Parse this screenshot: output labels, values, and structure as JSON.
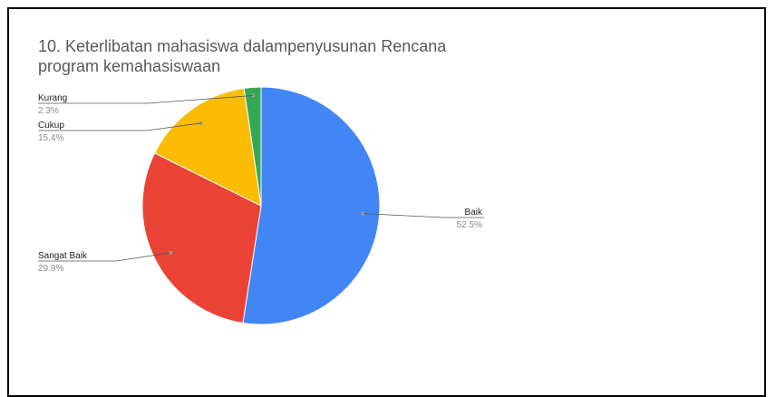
{
  "chart_data": {
    "type": "pie",
    "title": "10. Keterlibatan mahasiswa dalampenyusunan Rencana program kemahasiswaan",
    "slices": [
      {
        "label": "Baik",
        "value": 52.5,
        "percent": "52.5%",
        "color": "#4285f4",
        "legend_side": "right"
      },
      {
        "label": "Sangat Baik",
        "value": 29.9,
        "percent": "29.9%",
        "color": "#ea4335",
        "legend_side": "left"
      },
      {
        "label": "Cukup",
        "value": 15.4,
        "percent": "15.4%",
        "color": "#fbbc04",
        "legend_side": "left"
      },
      {
        "label": "Kurang",
        "value": 2.3,
        "percent": "2.3%",
        "color": "#34a853",
        "legend_side": "left"
      }
    ],
    "start_angle_deg": 0,
    "direction": "clockwise"
  }
}
